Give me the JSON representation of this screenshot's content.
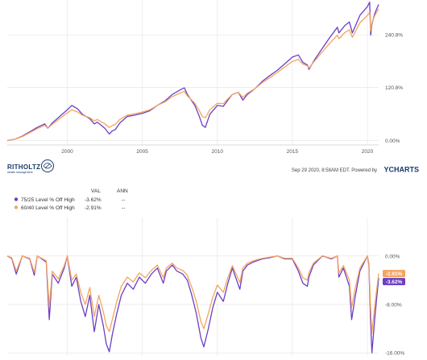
{
  "chart_data": [
    {
      "type": "line",
      "x_ticks": [
        "2000",
        "2005",
        "2010",
        "2015",
        "2020"
      ],
      "y_ticks": [
        "0.00%",
        "120.8%",
        "240.8%"
      ],
      "ylim": [
        -10,
        320
      ],
      "xlim": [
        1996.0,
        2020.75
      ],
      "grid": true,
      "series": [
        {
          "color": "#6a3fc4",
          "x": [
            1996.0,
            1996.5,
            1997.0,
            1997.5,
            1998.0,
            1998.5,
            1998.7,
            1999.0,
            1999.5,
            2000.0,
            2000.3,
            2000.7,
            2001.0,
            2001.5,
            2001.8,
            2002.0,
            2002.5,
            2002.8,
            2003.0,
            2003.2,
            2003.5,
            2004.0,
            2004.5,
            2005.0,
            2005.5,
            2006.0,
            2006.5,
            2007.0,
            2007.5,
            2007.8,
            2008.0,
            2008.5,
            2008.8,
            2009.0,
            2009.2,
            2009.5,
            2010.0,
            2010.4,
            2010.7,
            2011.0,
            2011.4,
            2011.7,
            2012.0,
            2012.5,
            2013.0,
            2013.5,
            2014.0,
            2014.5,
            2015.0,
            2015.4,
            2015.7,
            2016.0,
            2016.1,
            2016.5,
            2017.0,
            2017.5,
            2018.0,
            2018.1,
            2018.5,
            2018.8,
            2019.0,
            2019.5,
            2020.0,
            2020.15,
            2020.22,
            2020.3,
            2020.5,
            2020.75
          ],
          "y": [
            0,
            3,
            10,
            20,
            30,
            38,
            28,
            40,
            55,
            70,
            80,
            72,
            60,
            50,
            38,
            42,
            28,
            15,
            22,
            25,
            40,
            55,
            58,
            62,
            68,
            80,
            90,
            105,
            115,
            120,
            105,
            80,
            55,
            35,
            30,
            60,
            80,
            78,
            92,
            105,
            110,
            92,
            105,
            118,
            135,
            148,
            160,
            175,
            190,
            195,
            178,
            172,
            162,
            185,
            210,
            235,
            258,
            245,
            262,
            270,
            245,
            285,
            305,
            315,
            240,
            265,
            290,
            310
          ]
        },
        {
          "color": "#f4a460",
          "x": [
            1996.0,
            1996.5,
            1997.0,
            1997.5,
            1998.0,
            1998.5,
            1998.7,
            1999.0,
            1999.5,
            2000.0,
            2000.3,
            2000.7,
            2001.0,
            2001.5,
            2001.8,
            2002.0,
            2002.5,
            2002.8,
            2003.0,
            2003.2,
            2003.5,
            2004.0,
            2004.5,
            2005.0,
            2005.5,
            2006.0,
            2006.5,
            2007.0,
            2007.5,
            2007.8,
            2008.0,
            2008.5,
            2008.8,
            2009.0,
            2009.2,
            2009.5,
            2010.0,
            2010.4,
            2010.7,
            2011.0,
            2011.4,
            2011.7,
            2012.0,
            2012.5,
            2013.0,
            2013.5,
            2014.0,
            2014.5,
            2015.0,
            2015.4,
            2015.7,
            2016.0,
            2016.1,
            2016.5,
            2017.0,
            2017.5,
            2018.0,
            2018.1,
            2018.5,
            2018.8,
            2019.0,
            2019.5,
            2020.0,
            2020.15,
            2020.22,
            2020.3,
            2020.5,
            2020.75
          ],
          "y": [
            0,
            3,
            9,
            18,
            27,
            35,
            28,
            37,
            50,
            63,
            70,
            65,
            58,
            52,
            45,
            48,
            38,
            30,
            34,
            37,
            48,
            58,
            61,
            65,
            70,
            80,
            88,
            100,
            108,
            112,
            102,
            85,
            68,
            55,
            52,
            70,
            85,
            84,
            95,
            105,
            110,
            98,
            108,
            118,
            132,
            143,
            155,
            168,
            180,
            185,
            174,
            170,
            165,
            182,
            202,
            222,
            240,
            232,
            246,
            252,
            235,
            268,
            285,
            292,
            250,
            268,
            285,
            300
          ]
        }
      ]
    },
    {
      "type": "line",
      "title": "",
      "y_ticks": [
        "0.00%",
        "-8.00%",
        "-16.00%"
      ],
      "ylim": [
        -16.5,
        0.5
      ],
      "xlim": [
        1996.0,
        2020.75
      ],
      "grid": true,
      "legend": {
        "headers": [
          "VAL",
          "ANN"
        ],
        "rows": [
          {
            "label": "75/25 Level % Off High",
            "val": "-3.62%",
            "ann": "--",
            "color": "#6a3fc4"
          },
          {
            "label": "60/40 Level % Off High",
            "val": "-2.91%",
            "ann": "--",
            "color": "#f4a460"
          }
        ]
      },
      "end_labels": [
        {
          "text": "-2.91%",
          "color": "#f4a460"
        },
        {
          "text": "-3.62%",
          "color": "#6a3fc4"
        }
      ],
      "series": [
        {
          "name": "75/25 Level % Off High",
          "color": "#6a3fc4",
          "x": [
            1996.0,
            1996.3,
            1996.6,
            1997.0,
            1997.5,
            1997.8,
            1998.0,
            1998.6,
            1998.8,
            1999.0,
            1999.4,
            1999.8,
            2000.0,
            2000.3,
            2000.6,
            2000.9,
            2001.2,
            2001.5,
            2001.8,
            2002.1,
            2002.4,
            2002.6,
            2002.8,
            2003.0,
            2003.3,
            2003.6,
            2004.0,
            2004.4,
            2004.8,
            2005.2,
            2005.6,
            2006.0,
            2006.4,
            2006.6,
            2007.0,
            2007.3,
            2007.7,
            2008.0,
            2008.3,
            2008.6,
            2008.9,
            2009.1,
            2009.4,
            2009.7,
            2010.0,
            2010.4,
            2010.7,
            2011.0,
            2011.5,
            2011.7,
            2012.0,
            2012.4,
            2013.0,
            2013.5,
            2014.0,
            2014.5,
            2015.0,
            2015.4,
            2015.7,
            2016.0,
            2016.1,
            2016.4,
            2017.0,
            2017.6,
            2018.0,
            2018.1,
            2018.4,
            2018.8,
            2018.95,
            2019.2,
            2019.5,
            2020.0,
            2020.1,
            2020.2,
            2020.3,
            2020.5,
            2020.75
          ],
          "y": [
            0,
            -0.4,
            -3.0,
            0,
            -0.5,
            -3.2,
            0,
            -1.0,
            -10.5,
            -3.0,
            -4.5,
            -2.0,
            0,
            -5.0,
            -3.5,
            -7.5,
            -10.0,
            -6.5,
            -12.5,
            -8.0,
            -11.5,
            -14.5,
            -15.8,
            -13.0,
            -9.5,
            -6.5,
            -4.5,
            -5.5,
            -3.5,
            -4.5,
            -3.0,
            -2.0,
            -4.5,
            -2.5,
            -1.5,
            -2.5,
            -3.0,
            -4.0,
            -6.5,
            -9.5,
            -13.5,
            -15.0,
            -12.0,
            -8.5,
            -6.0,
            -7.5,
            -4.5,
            -2.0,
            -5.5,
            -2.5,
            -1.5,
            -1.0,
            -0.5,
            -0.3,
            0,
            -0.5,
            -0.5,
            -2.5,
            -4.5,
            -5.0,
            -3.5,
            -1.5,
            0,
            -0.5,
            0,
            -3.5,
            -2.0,
            -5.0,
            -10.5,
            -6.5,
            -2.5,
            0,
            -1.5,
            -10.0,
            -16.0,
            -10.0,
            -3.62
          ]
        },
        {
          "name": "60/40 Level % Off High",
          "color": "#f4a460",
          "x": [
            1996.0,
            1996.3,
            1996.6,
            1997.0,
            1997.5,
            1997.8,
            1998.0,
            1998.6,
            1998.8,
            1999.0,
            1999.4,
            1999.8,
            2000.0,
            2000.3,
            2000.6,
            2000.9,
            2001.2,
            2001.5,
            2001.8,
            2002.1,
            2002.4,
            2002.6,
            2002.8,
            2003.0,
            2003.3,
            2003.6,
            2004.0,
            2004.4,
            2004.8,
            2005.2,
            2005.6,
            2006.0,
            2006.4,
            2006.6,
            2007.0,
            2007.3,
            2007.7,
            2008.0,
            2008.3,
            2008.6,
            2008.9,
            2009.1,
            2009.4,
            2009.7,
            2010.0,
            2010.4,
            2010.7,
            2011.0,
            2011.5,
            2011.7,
            2012.0,
            2012.4,
            2013.0,
            2013.5,
            2014.0,
            2014.5,
            2015.0,
            2015.4,
            2015.7,
            2016.0,
            2016.1,
            2016.4,
            2017.0,
            2017.6,
            2018.0,
            2018.1,
            2018.4,
            2018.8,
            2018.95,
            2019.2,
            2019.5,
            2020.0,
            2020.1,
            2020.2,
            2020.3,
            2020.5,
            2020.75
          ],
          "y": [
            0,
            -0.3,
            -2.5,
            0,
            -0.4,
            -2.7,
            0,
            -0.8,
            -8.5,
            -2.5,
            -3.8,
            -1.6,
            0,
            -4.0,
            -3.0,
            -6.0,
            -8.0,
            -5.2,
            -10.0,
            -6.5,
            -9.2,
            -11.5,
            -12.5,
            -10.5,
            -7.5,
            -5.0,
            -3.5,
            -4.3,
            -2.8,
            -3.6,
            -2.4,
            -1.5,
            -3.6,
            -2.0,
            -1.2,
            -2.0,
            -2.4,
            -3.2,
            -5.2,
            -7.5,
            -10.8,
            -12.0,
            -9.5,
            -6.8,
            -4.8,
            -6.0,
            -3.6,
            -1.6,
            -4.4,
            -2.0,
            -1.2,
            -0.8,
            -0.4,
            -0.2,
            0,
            -0.4,
            -0.4,
            -2.0,
            -3.6,
            -4.0,
            -2.8,
            -1.2,
            0,
            -0.4,
            0,
            -2.8,
            -1.6,
            -4.0,
            -8.5,
            -5.2,
            -2.0,
            0,
            -1.2,
            -8.0,
            -12.8,
            -8.0,
            -2.91
          ]
        }
      ]
    }
  ],
  "footer": {
    "logo_text": "RITHOLTZ",
    "logo_subtext": "wealth management",
    "timestamp": "Sep 29 2020, 8:58AM EDT. Powered by",
    "brand": "YCHARTS"
  }
}
